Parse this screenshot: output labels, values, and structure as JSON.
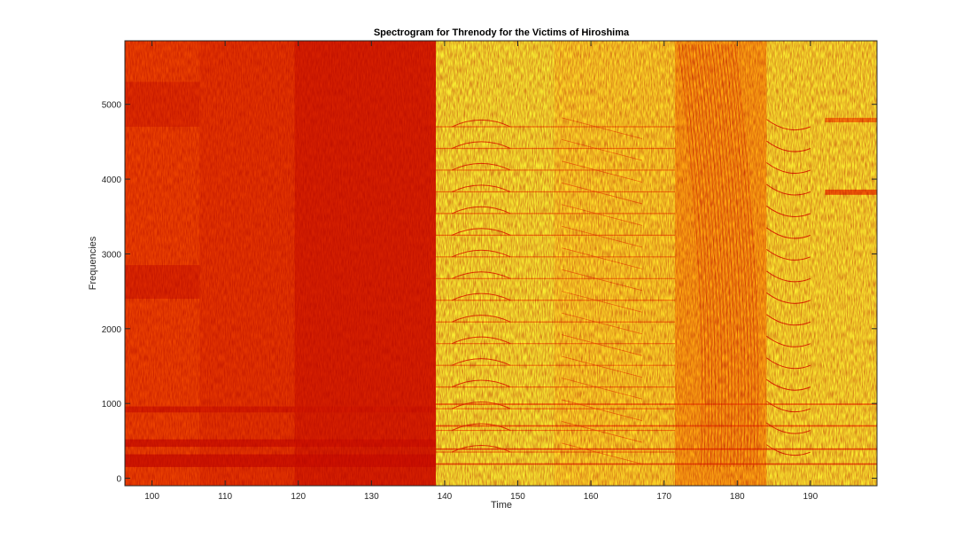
{
  "chart_data": {
    "type": "heatmap",
    "title": "Spectrogram for Threnody for the Victims of Hiroshima",
    "xlabel": "Time",
    "ylabel": "Frequencies",
    "xlim": [
      96.3,
      199.1
    ],
    "ylim": [
      -100,
      5850
    ],
    "xticks": [
      100,
      110,
      120,
      130,
      140,
      150,
      160,
      170,
      180,
      190
    ],
    "yticks": [
      0,
      1000,
      2000,
      3000,
      4000,
      5000
    ],
    "grid": false,
    "colormap": "autumn-green (dark red = high energy, yellow/green = low energy)",
    "colormap_stops": [
      "#c80a00",
      "#f04800",
      "#fb8a08",
      "#ffd424",
      "#f4ff3c",
      "#8cf48a"
    ],
    "regions": [
      {
        "time": [
          96.3,
          106.5
        ],
        "level": 0.82
      },
      {
        "time": [
          106.5,
          119.5
        ],
        "level": 0.86
      },
      {
        "time": [
          119.5,
          138.8
        ],
        "level": 0.93
      },
      {
        "time": [
          138.8,
          155
        ],
        "level": 0.28
      },
      {
        "time": [
          155,
          171.5
        ],
        "level": 0.36
      },
      {
        "time": [
          171.5,
          184
        ],
        "level": 0.52
      },
      {
        "time": [
          184,
          199.1
        ],
        "level": 0.3
      }
    ],
    "bands": [
      {
        "time": [
          96.3,
          106.5
        ],
        "freq": [
          4700,
          5300
        ],
        "level": 0.9
      },
      {
        "time": [
          96.3,
          106.5
        ],
        "freq": [
          2400,
          2850
        ],
        "level": 0.92
      },
      {
        "time": [
          96.3,
          138.8
        ],
        "freq": [
          880,
          960
        ],
        "level": 0.95
      },
      {
        "time": [
          96.3,
          138.8
        ],
        "freq": [
          420,
          520
        ],
        "level": 0.97
      },
      {
        "time": [
          96.3,
          138.8
        ],
        "freq": [
          150,
          320
        ],
        "level": 0.98
      },
      {
        "time": [
          138.8,
          199.1
        ],
        "freq": [
          180,
          200
        ],
        "level": 0.85
      },
      {
        "time": [
          138.8,
          199.1
        ],
        "freq": [
          380,
          400
        ],
        "level": 0.85
      },
      {
        "time": [
          138.8,
          199.1
        ],
        "freq": [
          690,
          710
        ],
        "level": 0.8
      },
      {
        "time": [
          138.8,
          199.1
        ],
        "freq": [
          980,
          1000
        ],
        "level": 0.75
      },
      {
        "time": [
          192,
          199.1
        ],
        "freq": [
          3790,
          3860
        ],
        "level": 0.8
      },
      {
        "time": [
          192,
          199.1
        ],
        "freq": [
          4760,
          4820
        ],
        "level": 0.7
      }
    ]
  }
}
